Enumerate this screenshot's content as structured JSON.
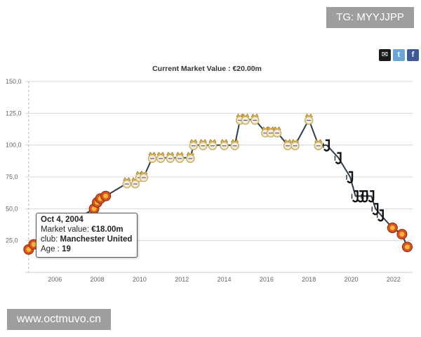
{
  "watermarks": {
    "top": "TG: MYYJJPP",
    "bottom": "www.octmuvo.cn"
  },
  "share": {
    "email_icon": "email-icon",
    "twitter_icon": "twitter-icon",
    "facebook_icon": "facebook-icon"
  },
  "tooltip": {
    "date": "Oct 4, 2004",
    "value_label": "Market value:",
    "value": "€18.00m",
    "club_label": "club:",
    "club": "Manchester United",
    "age_label": "Age :",
    "age": "19"
  },
  "colors": {
    "line": "#2e3d4d",
    "mu": "#d9531e",
    "rm": "#c9b16a",
    "juv": "#111111"
  },
  "chart_data": {
    "type": "line",
    "title": "Current Market Value : €20.00m",
    "xlabel": "",
    "ylabel": "",
    "xlim": [
      2004.6,
      2022.9
    ],
    "ylim": [
      0,
      150
    ],
    "yticks": [
      "25,0",
      "50,0",
      "75,0",
      "100,0",
      "125,0",
      "150,0"
    ],
    "ytick_values": [
      25,
      50,
      75,
      100,
      125,
      150
    ],
    "xticks": [
      "2006",
      "2008",
      "2010",
      "2012",
      "2014",
      "2016",
      "2018",
      "2020",
      "2022"
    ],
    "xtick_values": [
      2006,
      2008,
      2010,
      2012,
      2014,
      2016,
      2018,
      2020,
      2022
    ],
    "grid": true,
    "series": [
      {
        "name": "Market value",
        "points": [
          {
            "x": 2004.76,
            "y": 18,
            "club": "Manchester United"
          },
          {
            "x": 2005.0,
            "y": 22,
            "club": "Manchester United"
          },
          {
            "x": 2007.85,
            "y": 50,
            "club": "Manchester United"
          },
          {
            "x": 2008.0,
            "y": 55,
            "club": "Manchester United"
          },
          {
            "x": 2008.15,
            "y": 58,
            "club": "Manchester United"
          },
          {
            "x": 2008.4,
            "y": 60,
            "club": "Manchester United"
          },
          {
            "x": 2009.4,
            "y": 70,
            "club": "Real Madrid"
          },
          {
            "x": 2009.8,
            "y": 70,
            "club": "Real Madrid"
          },
          {
            "x": 2010.0,
            "y": 75,
            "club": "Real Madrid"
          },
          {
            "x": 2010.2,
            "y": 75,
            "club": "Real Madrid"
          },
          {
            "x": 2010.6,
            "y": 90,
            "club": "Real Madrid"
          },
          {
            "x": 2011.0,
            "y": 90,
            "club": "Real Madrid"
          },
          {
            "x": 2011.45,
            "y": 90,
            "club": "Real Madrid"
          },
          {
            "x": 2011.9,
            "y": 90,
            "club": "Real Madrid"
          },
          {
            "x": 2012.4,
            "y": 90,
            "club": "Real Madrid"
          },
          {
            "x": 2012.55,
            "y": 100,
            "club": "Real Madrid"
          },
          {
            "x": 2013.0,
            "y": 100,
            "club": "Real Madrid"
          },
          {
            "x": 2013.45,
            "y": 100,
            "club": "Real Madrid"
          },
          {
            "x": 2014.0,
            "y": 100,
            "club": "Real Madrid"
          },
          {
            "x": 2014.5,
            "y": 100,
            "club": "Real Madrid"
          },
          {
            "x": 2014.75,
            "y": 120,
            "club": "Real Madrid"
          },
          {
            "x": 2015.0,
            "y": 120,
            "club": "Real Madrid"
          },
          {
            "x": 2015.45,
            "y": 120,
            "club": "Real Madrid"
          },
          {
            "x": 2015.95,
            "y": 110,
            "club": "Real Madrid"
          },
          {
            "x": 2016.2,
            "y": 110,
            "club": "Real Madrid"
          },
          {
            "x": 2016.5,
            "y": 110,
            "club": "Real Madrid"
          },
          {
            "x": 2017.0,
            "y": 100,
            "club": "Real Madrid"
          },
          {
            "x": 2017.35,
            "y": 100,
            "club": "Real Madrid"
          },
          {
            "x": 2018.0,
            "y": 120,
            "club": "Real Madrid"
          },
          {
            "x": 2018.45,
            "y": 100,
            "club": "Real Madrid"
          },
          {
            "x": 2018.85,
            "y": 100,
            "club": "Juventus"
          },
          {
            "x": 2019.4,
            "y": 90,
            "club": "Juventus"
          },
          {
            "x": 2019.95,
            "y": 75,
            "club": "Juventus"
          },
          {
            "x": 2020.2,
            "y": 60,
            "club": "Juventus"
          },
          {
            "x": 2020.45,
            "y": 60,
            "club": "Juventus"
          },
          {
            "x": 2020.65,
            "y": 60,
            "club": "Juventus"
          },
          {
            "x": 2020.95,
            "y": 60,
            "club": "Juventus"
          },
          {
            "x": 2021.15,
            "y": 50,
            "club": "Juventus"
          },
          {
            "x": 2021.4,
            "y": 45,
            "club": "Juventus"
          },
          {
            "x": 2021.95,
            "y": 35,
            "club": "Manchester United"
          },
          {
            "x": 2022.4,
            "y": 30,
            "club": "Manchester United"
          },
          {
            "x": 2022.65,
            "y": 20,
            "club": "Manchester United"
          }
        ]
      }
    ],
    "highlight_x": 2004.76
  }
}
